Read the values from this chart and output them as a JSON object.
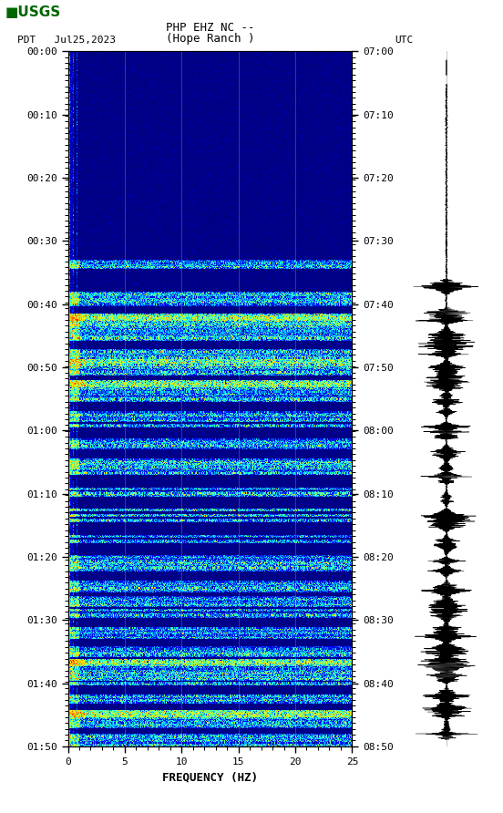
{
  "title_line1": "PHP EHZ NC --",
  "title_line2": "(Hope Ranch )",
  "left_label": "PDT   Jul25,2023",
  "right_label": "UTC",
  "xlabel": "FREQUENCY (HZ)",
  "freq_min": 0,
  "freq_max": 25,
  "ytick_labels_left": [
    "00:00",
    "00:10",
    "00:20",
    "00:30",
    "00:40",
    "00:50",
    "01:00",
    "01:10",
    "01:20",
    "01:30",
    "01:40",
    "01:50"
  ],
  "ytick_labels_right": [
    "07:00",
    "07:10",
    "07:20",
    "07:30",
    "07:40",
    "07:50",
    "08:00",
    "08:10",
    "08:20",
    "08:30",
    "08:40",
    "08:50"
  ],
  "xtick_positions": [
    0,
    5,
    10,
    15,
    20,
    25
  ],
  "bg_color": "#ffffff",
  "spectrogram_cmap": "jet",
  "num_time_bins": 660,
  "num_freq_bins": 500,
  "seed": 42,
  "fig_width": 5.52,
  "fig_height": 8.92,
  "dpi": 100,
  "vline_freqs": [
    5,
    10,
    15,
    20
  ],
  "usgs_color": "#006600"
}
